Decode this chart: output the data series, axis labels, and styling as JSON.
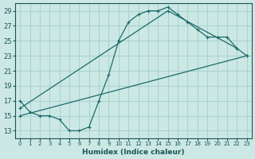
{
  "xlabel": "Humidex (Indice chaleur)",
  "bg_color": "#cce8e5",
  "grid_color": "#aad4d0",
  "line_color": "#1a6b6b",
  "ylim": [
    12,
    30
  ],
  "xlim": [
    -0.5,
    23.5
  ],
  "yticks": [
    13,
    15,
    17,
    19,
    21,
    23,
    25,
    27,
    29
  ],
  "xticks": [
    0,
    1,
    2,
    3,
    4,
    5,
    6,
    7,
    8,
    9,
    10,
    11,
    12,
    13,
    14,
    15,
    16,
    17,
    18,
    19,
    20,
    21,
    22,
    23
  ],
  "curve1_x": [
    0,
    1,
    2,
    3,
    4,
    5,
    6,
    7,
    8,
    9,
    10,
    11,
    12,
    13,
    14,
    15,
    16,
    17,
    18,
    19,
    20,
    21,
    22,
    23
  ],
  "curve1_y": [
    17,
    15.5,
    15,
    15,
    14.5,
    13,
    13,
    13.5,
    17,
    20.5,
    25,
    27.5,
    28.5,
    29,
    29,
    29.5,
    28.5,
    27.5,
    26.5,
    25.5,
    25.5,
    25.5,
    24,
    23
  ],
  "curve2_x": [
    0,
    15,
    22
  ],
  "curve2_y": [
    16,
    29,
    24
  ],
  "curve3_x": [
    0,
    23
  ],
  "curve3_y": [
    15,
    23
  ]
}
